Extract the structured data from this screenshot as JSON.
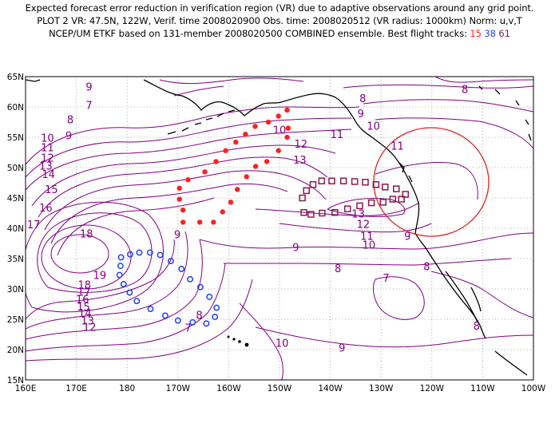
{
  "header": {
    "line1": "Expected forecast error reduction in verification region (VR) due to adaptive observations around any grid point.",
    "line2": "PLOT 2 VR: 47.5N, 122W, Verif. time 2008020900 Obs. time: 2008020512 (VR radius: 1000km) Norm: u,v,T",
    "line3_prefix": "NCEP/UM ETKF based on 131-member 2008020500 COMBINED ensemble.  Best flight tracks: ",
    "tracks": [
      {
        "label": "15",
        "color": "#ff2020"
      },
      {
        "label": "38",
        "color": "#2040ff"
      },
      {
        "label": "61",
        "color": "#8b1a4a"
      }
    ]
  },
  "map": {
    "lon_labels": [
      "160E",
      "170E",
      "180",
      "170W",
      "160W",
      "150W",
      "140W",
      "130W",
      "120W",
      "110W",
      "100W"
    ],
    "lat_labels": [
      "65N",
      "60N",
      "55N",
      "50N",
      "45N",
      "40N",
      "35N",
      "30N",
      "25N",
      "20N",
      "15N"
    ],
    "lon_range": [
      160,
      260
    ],
    "lat_range": [
      15,
      65
    ],
    "grid": true,
    "contour_color": "#800080",
    "coast_color": "#000000",
    "circle_color": "#e02020",
    "vr_center": {
      "lon": 238,
      "lat": 47.5
    },
    "contour_labels": [
      {
        "text": "9",
        "lon": 172.5,
        "lat": 63.2
      },
      {
        "text": "7",
        "lon": 172.5,
        "lat": 60.2
      },
      {
        "text": "8",
        "lon": 168.8,
        "lat": 57.8
      },
      {
        "text": "9",
        "lon": 168.5,
        "lat": 55.2
      },
      {
        "text": "10",
        "lon": 164.3,
        "lat": 54.8
      },
      {
        "text": "11",
        "lon": 164.3,
        "lat": 53.2
      },
      {
        "text": "12",
        "lon": 164.3,
        "lat": 51.5
      },
      {
        "text": "13",
        "lon": 164.0,
        "lat": 50.2
      },
      {
        "text": "14",
        "lon": 164.5,
        "lat": 48.8
      },
      {
        "text": "15",
        "lon": 165.1,
        "lat": 46.3
      },
      {
        "text": "16",
        "lon": 164.0,
        "lat": 43.3
      },
      {
        "text": "17",
        "lon": 161.6,
        "lat": 40.5
      },
      {
        "text": "18",
        "lon": 172.0,
        "lat": 39.0
      },
      {
        "text": "19",
        "lon": 174.6,
        "lat": 32.2
      },
      {
        "text": "18",
        "lon": 171.6,
        "lat": 30.6
      },
      {
        "text": "17",
        "lon": 171.5,
        "lat": 29.4
      },
      {
        "text": "16",
        "lon": 171.2,
        "lat": 28.2
      },
      {
        "text": "15",
        "lon": 171.4,
        "lat": 27.0
      },
      {
        "text": "14",
        "lon": 171.7,
        "lat": 25.9
      },
      {
        "text": "13",
        "lon": 172.2,
        "lat": 24.7
      },
      {
        "text": "12",
        "lon": 172.6,
        "lat": 23.6
      },
      {
        "text": "9",
        "lon": 189.9,
        "lat": 38.9
      },
      {
        "text": "8",
        "lon": 194.2,
        "lat": 25.6
      },
      {
        "text": "7",
        "lon": 192.0,
        "lat": 23.5
      },
      {
        "text": "10",
        "lon": 210.5,
        "lat": 21.0
      },
      {
        "text": "9",
        "lon": 222.3,
        "lat": 20.2
      },
      {
        "text": "10",
        "lon": 210.0,
        "lat": 56.1
      },
      {
        "text": "11",
        "lon": 221.3,
        "lat": 55.4
      },
      {
        "text": "12",
        "lon": 214.2,
        "lat": 53.8
      },
      {
        "text": "13",
        "lon": 214.0,
        "lat": 51.2
      },
      {
        "text": "12",
        "lon": 226.5,
        "lat": 40.6
      },
      {
        "text": "11",
        "lon": 227.2,
        "lat": 38.6
      },
      {
        "text": "10",
        "lon": 227.6,
        "lat": 37.2
      },
      {
        "text": "9",
        "lon": 213.2,
        "lat": 36.8
      },
      {
        "text": "13",
        "lon": 225.5,
        "lat": 42.3
      },
      {
        "text": "8",
        "lon": 226.4,
        "lat": 61.3
      },
      {
        "text": "9",
        "lon": 226.0,
        "lat": 58.8
      },
      {
        "text": "10",
        "lon": 228.5,
        "lat": 56.8
      },
      {
        "text": "11",
        "lon": 233.2,
        "lat": 53.5
      },
      {
        "text": "8",
        "lon": 246.5,
        "lat": 62.8
      },
      {
        "text": "9",
        "lon": 235.2,
        "lat": 38.6
      },
      {
        "text": "8",
        "lon": 221.5,
        "lat": 33.3
      },
      {
        "text": "7",
        "lon": 231.0,
        "lat": 31.7
      },
      {
        "text": "8",
        "lon": 239.0,
        "lat": 33.6
      },
      {
        "text": "8",
        "lon": 248.8,
        "lat": 23.8
      }
    ],
    "red_track": [
      [
        211.5,
        59.5
      ],
      [
        209.8,
        58.5
      ],
      [
        207.8,
        57.5
      ],
      [
        205.2,
        56.8
      ],
      [
        203.3,
        55.5
      ],
      [
        201.4,
        54.2
      ],
      [
        199.4,
        52.8
      ],
      [
        197.5,
        51.0
      ],
      [
        195.3,
        49.3
      ],
      [
        192.0,
        48.0
      ],
      [
        190.3,
        46.6
      ],
      [
        190.3,
        44.8
      ],
      [
        191.0,
        43.0
      ],
      [
        191.0,
        41.0
      ],
      [
        194.3,
        41.0
      ],
      [
        197.0,
        41.0
      ],
      [
        198.8,
        42.7
      ],
      [
        200.4,
        44.3
      ],
      [
        201.7,
        46.4
      ],
      [
        203.5,
        48.5
      ],
      [
        205.3,
        50.2
      ],
      [
        207.5,
        51.0
      ],
      [
        209.8,
        52.8
      ],
      [
        211.5,
        55.0
      ],
      [
        211.7,
        56.5
      ]
    ],
    "blue_track": [
      [
        178.8,
        35.2
      ],
      [
        180.6,
        35.7
      ],
      [
        182.4,
        36.0
      ],
      [
        184.5,
        36.0
      ],
      [
        186.5,
        35.6
      ],
      [
        188.6,
        34.6
      ],
      [
        190.7,
        33.3
      ],
      [
        192.4,
        31.6
      ],
      [
        194.4,
        30.3
      ],
      [
        196.2,
        28.7
      ],
      [
        197.6,
        26.9
      ],
      [
        197.3,
        25.4
      ],
      [
        195.6,
        24.3
      ],
      [
        192.9,
        24.5
      ],
      [
        190.0,
        24.8
      ],
      [
        187.5,
        25.6
      ],
      [
        184.6,
        26.7
      ],
      [
        181.9,
        28.0
      ],
      [
        180.5,
        29.4
      ],
      [
        179.3,
        30.8
      ],
      [
        178.5,
        32.3
      ],
      [
        178.7,
        33.8
      ]
    ],
    "purple_track": [
      [
        214.5,
        45.0
      ],
      [
        215.3,
        46.2
      ],
      [
        216.6,
        47.2
      ],
      [
        218.3,
        47.8
      ],
      [
        220.3,
        47.8
      ],
      [
        222.6,
        47.8
      ],
      [
        224.8,
        47.7
      ],
      [
        226.9,
        47.6
      ],
      [
        229.0,
        47.2
      ],
      [
        230.8,
        46.8
      ],
      [
        233.0,
        46.5
      ],
      [
        234.8,
        45.6
      ],
      [
        234.0,
        44.8
      ],
      [
        232.3,
        44.8
      ],
      [
        230.4,
        44.3
      ],
      [
        228.1,
        44.2
      ],
      [
        225.8,
        43.7
      ],
      [
        223.4,
        43.2
      ],
      [
        220.9,
        42.6
      ],
      [
        218.4,
        42.5
      ],
      [
        216.2,
        42.3
      ],
      [
        214.8,
        42.6
      ]
    ]
  }
}
